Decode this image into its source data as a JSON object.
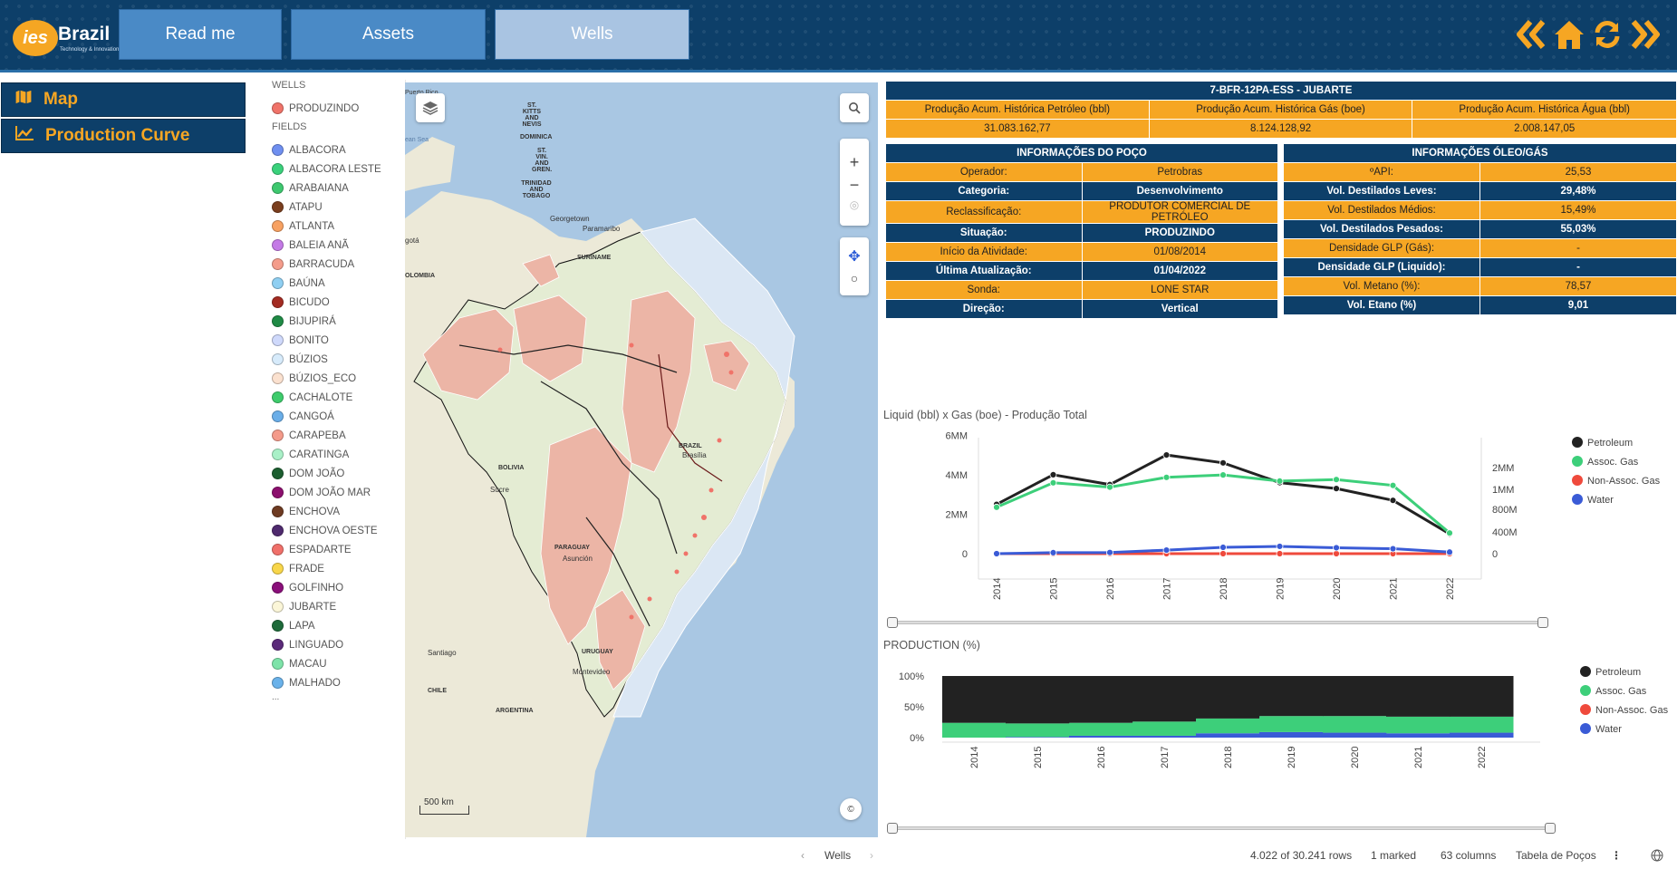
{
  "header": {
    "logo": {
      "mark": "ies",
      "name": "Brazil",
      "tagline": "Technology & Innovation"
    },
    "tabs": [
      {
        "label": "Read me",
        "active": false
      },
      {
        "label": "Assets",
        "active": false
      },
      {
        "label": "Wells",
        "active": true
      }
    ],
    "icons": [
      "chevrons-left-icon",
      "home-icon",
      "refresh-icon",
      "chevrons-right-icon"
    ]
  },
  "menu": [
    {
      "label": "Map",
      "icon": "map-icon"
    },
    {
      "label": "Production Curve",
      "icon": "line-chart-icon"
    }
  ],
  "legend": {
    "wells_heading": "WELLS",
    "wells": [
      {
        "label": "PRODUZINDO",
        "color": "#f07369"
      }
    ],
    "fields_heading": "FIELDS",
    "fields": [
      {
        "label": "ALBACORA",
        "color": "#6f8ff0"
      },
      {
        "label": "ALBACORA LESTE",
        "color": "#3ad17b"
      },
      {
        "label": "ARABAIANA",
        "color": "#3ec86f"
      },
      {
        "label": "ATAPU",
        "color": "#7a3e1e"
      },
      {
        "label": "ATLANTA",
        "color": "#f7a162"
      },
      {
        "label": "BALEIA ANÃ",
        "color": "#c47ae6"
      },
      {
        "label": "BARRACUDA",
        "color": "#f49c8b"
      },
      {
        "label": "BAÚNA",
        "color": "#8fcff2"
      },
      {
        "label": "BICUDO",
        "color": "#a32b22"
      },
      {
        "label": "BIJUPIRÁ",
        "color": "#1f8a45"
      },
      {
        "label": "BONITO",
        "color": "#cfd9fb"
      },
      {
        "label": "BÚZIOS",
        "color": "#d7ebfb"
      },
      {
        "label": "BÚZIOS_ECO",
        "color": "#fbe1cf"
      },
      {
        "label": "CACHALOTE",
        "color": "#3ecc6c"
      },
      {
        "label": "CANGOÁ",
        "color": "#6aaee8"
      },
      {
        "label": "CARAPEBA",
        "color": "#f49a8a"
      },
      {
        "label": "CARATINGA",
        "color": "#a9f0c7"
      },
      {
        "label": "DOM JOÃO",
        "color": "#1c5e30"
      },
      {
        "label": "DOM JOÃO MAR",
        "color": "#8c0f6e"
      },
      {
        "label": "ENCHOVA",
        "color": "#6e3b22"
      },
      {
        "label": "ENCHOVA OESTE",
        "color": "#4f2a6e"
      },
      {
        "label": "ESPADARTE",
        "color": "#f0706a"
      },
      {
        "label": "FRADE",
        "color": "#f8d64a"
      },
      {
        "label": "GOLFINHO",
        "color": "#8a0f7a"
      },
      {
        "label": "JUBARTE",
        "color": "#fbf6d8"
      },
      {
        "label": "LAPA",
        "color": "#1e6a3a"
      },
      {
        "label": "LINGUADO",
        "color": "#5b2a7a"
      },
      {
        "label": "MACAU",
        "color": "#7ee3a9"
      },
      {
        "label": "MALHADO",
        "color": "#6ab2ea"
      }
    ],
    "more": "..."
  },
  "map": {
    "labels": {
      "puerto_rico": "Puerto Rico",
      "st_kitts": "ST. KITTS AND NEVIS",
      "caribbean": "ean Sea",
      "dominica": "DOMINICA",
      "st_vincent": "ST. VIN. AND GREN.",
      "trinidad": "TRINIDAD AND TOBAGO",
      "georgetown": "Georgetown",
      "paramaribo": "Paramaribo",
      "suriname": "SURINAME",
      "bogota": "gotá",
      "colombia": "OLOMBIA",
      "brazil": "BRAZIL",
      "brasilia": "Brasília",
      "bolivia": "BOLIVIA",
      "sucre": "Sucre",
      "paraguay": "PARAGUAY",
      "asuncion": "Asunción",
      "santiago": "Santiago",
      "chile": "CHILE",
      "uruguay": "URUGUAY",
      "montevideo": "Montevideo",
      "argentina": "ARGENTINA"
    },
    "scale_label": "500 km",
    "controls": [
      "layers-icon",
      "search-icon",
      "zoom-in-icon",
      "zoom-out-icon",
      "locate-icon",
      "pan-icon",
      "lasso-icon"
    ],
    "attribution": "©"
  },
  "well_summary": {
    "title": "7-BFR-12PA-ESS - JUBARTE",
    "headers": [
      "Produção Acum. Histórica Petróleo (bbl)",
      "Produção Acum. Histórica Gás (boe)",
      "Produção Acum. Histórica Água (bbl)"
    ],
    "values": [
      "31.083.162,77",
      "8.124.128,92",
      "2.008.147,05"
    ]
  },
  "well_info": {
    "title": "INFORMAÇÕES DO POÇO",
    "rows": [
      [
        "Operador:",
        "Petrobras"
      ],
      [
        "Categoria:",
        "Desenvolvimento"
      ],
      [
        "Reclassificação:",
        "PRODUTOR COMERCIAL DE PETRÓLEO"
      ],
      [
        "Situação:",
        "PRODUZINDO"
      ],
      [
        "Início da Atividade:",
        "01/08/2014"
      ],
      [
        "Última Atualização:",
        "01/04/2022"
      ],
      [
        "Sonda:",
        "LONE STAR"
      ],
      [
        "Direção:",
        "Vertical"
      ]
    ]
  },
  "oil_gas_info": {
    "title": "INFORMAÇÕES ÓLEO/GÁS",
    "rows": [
      [
        "ºAPI:",
        "25,53"
      ],
      [
        "Vol. Destilados Leves:",
        "29,48%"
      ],
      [
        "Vol. Destilados Médios:",
        "15,49%"
      ],
      [
        "Vol. Destilados Pesados:",
        "55,03%"
      ],
      [
        "Densidade GLP (Gás):",
        "-"
      ],
      [
        "Densidade GLP (Liquido):",
        "-"
      ],
      [
        "Vol. Metano (%):",
        "78,57"
      ],
      [
        "Vol. Etano (%)",
        "9,01"
      ]
    ]
  },
  "chart_data": [
    {
      "type": "line",
      "title": "Liquid (bbl) x Gas (boe) - Produção Total",
      "categories": [
        "2014",
        "2015",
        "2016",
        "2017",
        "2018",
        "2019",
        "2020",
        "2021",
        "2022"
      ],
      "y_left_ticks": [
        "0",
        "2MM",
        "4MM",
        "6MM"
      ],
      "y_left_lim": [
        0,
        6000000
      ],
      "y_right_ticks": [
        "0",
        "400M",
        "800M",
        "1MM",
        "2MM"
      ],
      "y_right_lim": [
        0,
        2000000
      ],
      "series": [
        {
          "name": "Petroleum",
          "axis": "left",
          "color": "#222222",
          "values": [
            2500000,
            4000000,
            3500000,
            5000000,
            4600000,
            3600000,
            3300000,
            2700000,
            1000000
          ]
        },
        {
          "name": "Assoc. Gas",
          "axis": "right",
          "color": "#3dcf7a",
          "values": [
            820000,
            1300000,
            1100000,
            1550000,
            1660000,
            1380000,
            1450000,
            1180000,
            380000
          ]
        },
        {
          "name": "Non-Assoc. Gas",
          "axis": "right",
          "color": "#ef4a3c",
          "values": [
            0,
            0,
            0,
            0,
            0,
            0,
            0,
            0,
            0
          ]
        },
        {
          "name": "Water",
          "axis": "left",
          "color": "#3a5bd6",
          "values": [
            0,
            50000,
            60000,
            180000,
            320000,
            370000,
            300000,
            250000,
            80000
          ]
        }
      ]
    },
    {
      "type": "area",
      "title": "PRODUCTION (%)",
      "categories": [
        "2014",
        "2015",
        "2016",
        "2017",
        "2018",
        "2019",
        "2020",
        "2021",
        "2022"
      ],
      "y_ticks": [
        "0%",
        "50%",
        "100%"
      ],
      "ylim": [
        0,
        100
      ],
      "series": [
        {
          "name": "Petroleum",
          "color": "#222222",
          "values": [
            76,
            77,
            76,
            74,
            69,
            65,
            65,
            66,
            66
          ]
        },
        {
          "name": "Assoc. Gas",
          "color": "#3dcf7a",
          "values": [
            24,
            22,
            21,
            23,
            24,
            26,
            27,
            27,
            26
          ]
        },
        {
          "name": "Non-Assoc. Gas",
          "color": "#ef4a3c",
          "values": [
            0,
            0,
            0,
            0,
            0,
            0,
            0,
            0,
            0
          ]
        },
        {
          "name": "Water",
          "color": "#3a5bd6",
          "values": [
            0,
            1,
            3,
            3,
            7,
            9,
            8,
            7,
            8
          ]
        }
      ]
    }
  ],
  "status_bar": {
    "sheet": "Wells",
    "rows": "4.022 of 30.241 rows",
    "marked": "1 marked",
    "columns": "63 columns",
    "table": "Tabela de Poços",
    "more_icon": "more-vertical-icon",
    "globe_icon": "globe-icon"
  }
}
